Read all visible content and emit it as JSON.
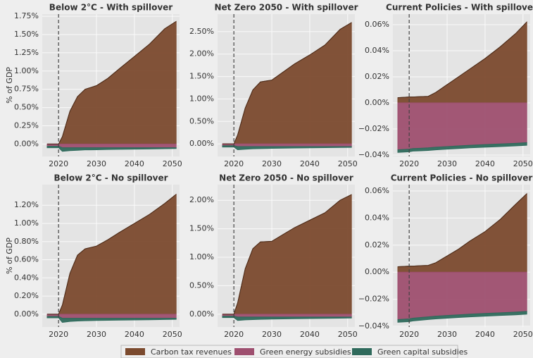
{
  "chart_data": [
    {
      "type": "area",
      "title": "Below 2°C - With spillover",
      "title_color": "#c8850f",
      "ylabel": "% of GDP",
      "vline": 2020,
      "x": [
        2017,
        2020,
        2021,
        2023,
        2025,
        2027,
        2030,
        2033,
        2036,
        2040,
        2044,
        2048,
        2051
      ],
      "xlim": [
        2015.7,
        2051.9
      ],
      "xticks": [
        2020,
        2030,
        2040,
        2050
      ],
      "ylim": [
        -0.17,
        1.78
      ],
      "yticks": [
        {
          "value": 0,
          "label": "0.00%"
        },
        {
          "value": 0.25,
          "label": "0.25%"
        },
        {
          "value": 0.5,
          "label": "0.50%"
        },
        {
          "value": 0.75,
          "label": "0.75%"
        },
        {
          "value": 1,
          "label": "1.00%"
        },
        {
          "value": 1.25,
          "label": "1.25%"
        },
        {
          "value": 1.5,
          "label": "1.50%"
        },
        {
          "value": 1.75,
          "label": "1.75%"
        }
      ],
      "series": [
        {
          "name": "Carbon tax revenues",
          "color": "#7b4a2e",
          "values": [
            0,
            0,
            0.1,
            0.45,
            0.65,
            0.75,
            0.8,
            0.9,
            1.03,
            1.2,
            1.37,
            1.58,
            1.68
          ]
        },
        {
          "name": "Green energy subsidies",
          "color": "#9e4f6f",
          "values": [
            -0.03,
            -0.03,
            -0.05,
            -0.05,
            -0.05,
            -0.05,
            -0.05,
            -0.05,
            -0.05,
            -0.05,
            -0.05,
            -0.05,
            -0.05
          ]
        },
        {
          "name": "Green capital subsidies",
          "color": "#2f6a5c",
          "values": [
            -0.02,
            -0.02,
            -0.05,
            -0.04,
            -0.035,
            -0.03,
            -0.028,
            -0.025,
            -0.022,
            -0.02,
            -0.017,
            -0.014,
            -0.012
          ]
        }
      ]
    },
    {
      "type": "area",
      "title": "Net Zero 2050 - With spillover",
      "title_color": "#1c5a5a",
      "vline": 2020,
      "x": [
        2017,
        2020,
        2021,
        2023,
        2025,
        2027,
        2030,
        2033,
        2036,
        2040,
        2044,
        2048,
        2051
      ],
      "xlim": [
        2015.7,
        2051.9
      ],
      "xticks": [
        2020,
        2030,
        2040,
        2050
      ],
      "ylim": [
        -0.28,
        2.89
      ],
      "yticks": [
        {
          "value": 0,
          "label": "0.00%"
        },
        {
          "value": 0.5,
          "label": "0.50%"
        },
        {
          "value": 1,
          "label": "1.00%"
        },
        {
          "value": 1.5,
          "label": "1.50%"
        },
        {
          "value": 2,
          "label": "2.00%"
        },
        {
          "value": 2.5,
          "label": "2.50%"
        }
      ],
      "series": [
        {
          "name": "Carbon tax revenues",
          "color": "#7b4a2e",
          "values": [
            0,
            0,
            0.2,
            0.8,
            1.2,
            1.38,
            1.42,
            1.6,
            1.78,
            1.98,
            2.2,
            2.55,
            2.7
          ]
        },
        {
          "name": "Green energy subsidies",
          "color": "#9e4f6f",
          "values": [
            -0.04,
            -0.04,
            -0.06,
            -0.06,
            -0.06,
            -0.06,
            -0.06,
            -0.06,
            -0.06,
            -0.06,
            -0.06,
            -0.06,
            -0.06
          ]
        },
        {
          "name": "Green capital subsidies",
          "color": "#2f6a5c",
          "values": [
            -0.03,
            -0.03,
            -0.07,
            -0.06,
            -0.05,
            -0.045,
            -0.04,
            -0.035,
            -0.032,
            -0.028,
            -0.024,
            -0.02,
            -0.018
          ]
        }
      ]
    },
    {
      "type": "area",
      "title": "Current Policies - With spillover",
      "title_color": "#7a1010",
      "vline": 2020,
      "x": [
        2017,
        2020,
        2021,
        2023,
        2025,
        2027,
        2030,
        2033,
        2036,
        2040,
        2044,
        2048,
        2051
      ],
      "xlim": [
        2015.7,
        2051.9
      ],
      "xticks": [
        2020,
        2030,
        2040,
        2050
      ],
      "ylim": [
        -0.0411,
        0.0681
      ],
      "yticks": [
        {
          "value": -0.04,
          "label": "−0.04%"
        },
        {
          "value": -0.02,
          "label": "−0.02%"
        },
        {
          "value": 0,
          "label": "0.00%"
        },
        {
          "value": 0.02,
          "label": "0.02%"
        },
        {
          "value": 0.04,
          "label": "0.04%"
        },
        {
          "value": 0.06,
          "label": "0.06%"
        }
      ],
      "series": [
        {
          "name": "Carbon tax revenues",
          "color": "#7b4a2e",
          "values": [
            0.004,
            0.0045,
            0.0045,
            0.0048,
            0.005,
            0.008,
            0.014,
            0.02,
            0.026,
            0.034,
            0.043,
            0.053,
            0.062
          ]
        },
        {
          "name": "Green energy subsidies",
          "color": "#9e4f6f",
          "values": [
            -0.036,
            -0.0355,
            -0.035,
            -0.0348,
            -0.0345,
            -0.034,
            -0.0335,
            -0.033,
            -0.0325,
            -0.032,
            -0.0315,
            -0.031,
            -0.0305
          ]
        },
        {
          "name": "Green capital subsidies",
          "color": "#2f6a5c",
          "values": [
            -0.002,
            -0.002,
            -0.002,
            -0.002,
            -0.002,
            -0.002,
            -0.002,
            -0.002,
            -0.002,
            -0.002,
            -0.002,
            -0.002,
            -0.002
          ]
        }
      ]
    },
    {
      "type": "area",
      "title": "Below 2°C - No spillover",
      "title_color": "#c8850f",
      "ylabel": "% of GDP",
      "vline": 2020,
      "x": [
        2017,
        2020,
        2021,
        2023,
        2025,
        2027,
        2030,
        2033,
        2036,
        2040,
        2044,
        2048,
        2051
      ],
      "xlim": [
        2015.7,
        2051.9
      ],
      "xticks": [
        2020,
        2030,
        2040,
        2050
      ],
      "ylim": [
        -0.141,
        1.427
      ],
      "yticks": [
        {
          "value": 0,
          "label": "0.00%"
        },
        {
          "value": 0.2,
          "label": "0.20%"
        },
        {
          "value": 0.4,
          "label": "0.40%"
        },
        {
          "value": 0.6,
          "label": "0.60%"
        },
        {
          "value": 0.8,
          "label": "0.80%"
        },
        {
          "value": 1,
          "label": "1.00%"
        },
        {
          "value": 1.2,
          "label": "1.20%"
        }
      ],
      "series": [
        {
          "name": "Carbon tax revenues",
          "color": "#7b4a2e",
          "values": [
            0,
            0,
            0.1,
            0.45,
            0.65,
            0.72,
            0.75,
            0.82,
            0.9,
            1.0,
            1.1,
            1.22,
            1.32
          ]
        },
        {
          "name": "Green energy subsidies",
          "color": "#9e4f6f",
          "values": [
            -0.025,
            -0.025,
            -0.045,
            -0.045,
            -0.045,
            -0.045,
            -0.045,
            -0.045,
            -0.045,
            -0.045,
            -0.045,
            -0.045,
            -0.045
          ]
        },
        {
          "name": "Green capital subsidies",
          "color": "#2f6a5c",
          "values": [
            -0.015,
            -0.015,
            -0.045,
            -0.035,
            -0.03,
            -0.027,
            -0.024,
            -0.022,
            -0.02,
            -0.018,
            -0.016,
            -0.014,
            -0.012
          ]
        }
      ]
    },
    {
      "type": "area",
      "title": "Net Zero 2050 - No spillover",
      "title_color": "#1c5a5a",
      "vline": 2020,
      "x": [
        2017,
        2020,
        2021,
        2023,
        2025,
        2027,
        2030,
        2033,
        2036,
        2040,
        2044,
        2048,
        2051
      ],
      "xlim": [
        2015.7,
        2051.9
      ],
      "xticks": [
        2020,
        2030,
        2040,
        2050
      ],
      "ylim": [
        -0.225,
        2.275
      ],
      "yticks": [
        {
          "value": 0,
          "label": "0.00%"
        },
        {
          "value": 0.5,
          "label": "0.50%"
        },
        {
          "value": 1,
          "label": "1.00%"
        },
        {
          "value": 1.5,
          "label": "1.50%"
        },
        {
          "value": 2,
          "label": "2.00%"
        }
      ],
      "series": [
        {
          "name": "Carbon tax revenues",
          "color": "#7b4a2e",
          "values": [
            0,
            0,
            0.2,
            0.8,
            1.15,
            1.27,
            1.28,
            1.4,
            1.52,
            1.65,
            1.78,
            2.0,
            2.1
          ]
        },
        {
          "name": "Green energy subsidies",
          "color": "#9e4f6f",
          "values": [
            -0.035,
            -0.035,
            -0.05,
            -0.05,
            -0.05,
            -0.05,
            -0.05,
            -0.05,
            -0.05,
            -0.05,
            -0.05,
            -0.05,
            -0.05
          ]
        },
        {
          "name": "Green capital subsidies",
          "color": "#2f6a5c",
          "values": [
            -0.025,
            -0.025,
            -0.06,
            -0.05,
            -0.045,
            -0.04,
            -0.036,
            -0.032,
            -0.029,
            -0.026,
            -0.023,
            -0.02,
            -0.018
          ]
        }
      ]
    },
    {
      "type": "area",
      "title": "Current Policies - No spillover",
      "title_color": "#7a1010",
      "vline": 2020,
      "x": [
        2017,
        2020,
        2021,
        2023,
        2025,
        2027,
        2030,
        2033,
        2036,
        2040,
        2044,
        2048,
        2051
      ],
      "xlim": [
        2015.7,
        2051.9
      ],
      "xticks": [
        2020,
        2030,
        2040,
        2050
      ],
      "ylim": [
        -0.0405,
        0.0647
      ],
      "yticks": [
        {
          "value": -0.04,
          "label": "−0.04%"
        },
        {
          "value": -0.02,
          "label": "−0.02%"
        },
        {
          "value": 0,
          "label": "0.00%"
        },
        {
          "value": 0.02,
          "label": "0.02%"
        },
        {
          "value": 0.04,
          "label": "0.04%"
        },
        {
          "value": 0.06,
          "label": "0.06%"
        }
      ],
      "series": [
        {
          "name": "Carbon tax revenues",
          "color": "#7b4a2e",
          "values": [
            0.004,
            0.0045,
            0.0045,
            0.0048,
            0.005,
            0.007,
            0.012,
            0.017,
            0.023,
            0.03,
            0.039,
            0.05,
            0.058
          ]
        },
        {
          "name": "Green energy subsidies",
          "color": "#9e4f6f",
          "values": [
            -0.035,
            -0.0345,
            -0.034,
            -0.0335,
            -0.033,
            -0.0325,
            -0.032,
            -0.0315,
            -0.031,
            -0.0305,
            -0.03,
            -0.0295,
            -0.029
          ]
        },
        {
          "name": "Green capital subsidies",
          "color": "#2f6a5c",
          "values": [
            -0.002,
            -0.002,
            -0.002,
            -0.002,
            -0.002,
            -0.002,
            -0.002,
            -0.002,
            -0.002,
            -0.002,
            -0.002,
            -0.002,
            -0.002
          ]
        }
      ]
    }
  ]
}
